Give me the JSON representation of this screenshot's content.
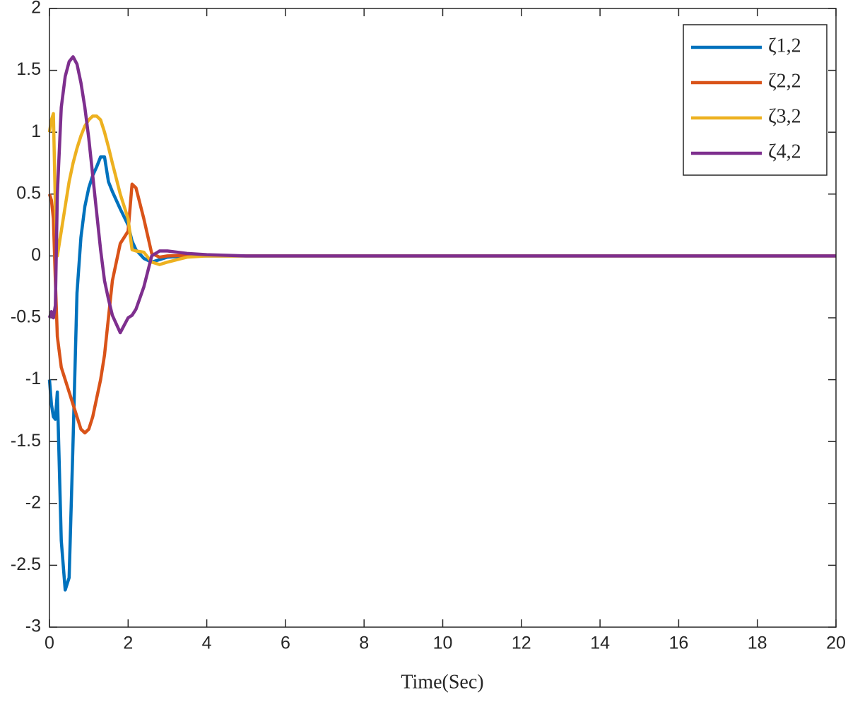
{
  "chart_data": {
    "type": "line",
    "xlabel": "Time(Sec)",
    "x": [
      0,
      0.05,
      0.1,
      0.15,
      0.2,
      0.3,
      0.4,
      0.5,
      0.6,
      0.7,
      0.8,
      0.9,
      1.0,
      1.1,
      1.2,
      1.3,
      1.4,
      1.5,
      1.6,
      1.8,
      2.0,
      2.1,
      2.2,
      2.4,
      2.6,
      2.8,
      3.0,
      3.5,
      4,
      5,
      6,
      8,
      10,
      12,
      14,
      16,
      18,
      20
    ],
    "series": [
      {
        "name": "ζ1,2",
        "color": "#0072bd",
        "values": [
          -1,
          -1.2,
          -1.3,
          -1.32,
          -1.1,
          -2.3,
          -2.7,
          -2.6,
          -1.5,
          -0.3,
          0.15,
          0.4,
          0.55,
          0.65,
          0.72,
          0.8,
          0.8,
          0.6,
          0.52,
          0.38,
          0.25,
          0.12,
          0.05,
          -0.02,
          -0.05,
          -0.03,
          -0.01,
          0,
          0,
          0,
          0,
          0,
          0,
          0,
          0,
          0,
          0,
          0
        ]
      },
      {
        "name": "ζ2,2",
        "color": "#d95319",
        "values": [
          0.5,
          0.45,
          0.3,
          -0.2,
          -0.65,
          -0.9,
          -1.0,
          -1.1,
          -1.2,
          -1.3,
          -1.4,
          -1.43,
          -1.4,
          -1.3,
          -1.15,
          -1.0,
          -0.8,
          -0.5,
          -0.2,
          0.1,
          0.2,
          0.58,
          0.55,
          0.3,
          0.02,
          -0.01,
          0,
          0.005,
          0,
          0,
          0,
          0,
          0,
          0,
          0,
          0,
          0,
          0
        ]
      },
      {
        "name": "ζ3,2",
        "color": "#edb120",
        "values": [
          1.0,
          1.1,
          1.15,
          0.4,
          0.0,
          0.2,
          0.4,
          0.6,
          0.75,
          0.87,
          0.97,
          1.05,
          1.1,
          1.13,
          1.13,
          1.1,
          1.0,
          0.88,
          0.75,
          0.5,
          0.3,
          0.05,
          0.04,
          0.03,
          -0.05,
          -0.07,
          -0.05,
          -0.01,
          0,
          0,
          0,
          0,
          0,
          0,
          0,
          0,
          0,
          0
        ]
      },
      {
        "name": "ζ4,2",
        "color": "#7e2f8e",
        "values": [
          -0.5,
          -0.45,
          -0.5,
          -0.4,
          0.5,
          1.2,
          1.45,
          1.57,
          1.61,
          1.55,
          1.4,
          1.2,
          0.95,
          0.65,
          0.35,
          0.05,
          -0.2,
          -0.35,
          -0.48,
          -0.62,
          -0.5,
          -0.48,
          -0.43,
          -0.25,
          0.0,
          0.04,
          0.04,
          0.02,
          0.01,
          0,
          0,
          0,
          0,
          0,
          0,
          0,
          0,
          0
        ]
      }
    ],
    "xlim": [
      0,
      20
    ],
    "xticks": [
      0,
      2,
      4,
      6,
      8,
      10,
      12,
      14,
      16,
      18,
      20
    ],
    "ylim": [
      -3,
      2
    ],
    "yticks": [
      -3,
      -2.5,
      -2,
      -1.5,
      -1,
      -0.5,
      0,
      0.5,
      1,
      1.5,
      2
    ],
    "legend": "upper-right"
  }
}
